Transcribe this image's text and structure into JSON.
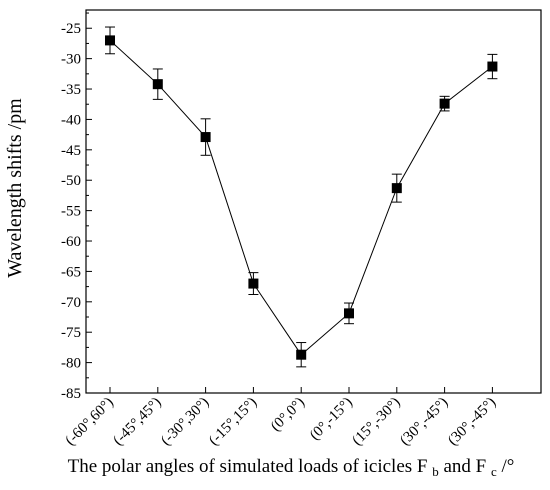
{
  "chart_data": {
    "type": "line",
    "categories": [
      "(-60°,60°)",
      "(-45°,45°)",
      "(-30°,30°)",
      "(-15°,15°)",
      "(0°,0°)",
      "(0°,-15°)",
      "(15°,-30°)",
      "(30°,-45°)",
      "(30°,-45°)"
    ],
    "series": [
      {
        "name": "",
        "values": [
          -27.0,
          -34.2,
          -42.9,
          -67.0,
          -78.7,
          -71.9,
          -51.3,
          -37.4,
          -31.3
        ],
        "errors": [
          2.2,
          2.5,
          3.0,
          1.8,
          2.0,
          1.7,
          2.3,
          1.2,
          2.0
        ]
      }
    ],
    "title": "",
    "xlabel": "The polar angles of simulated loads of icicles F",
    "xlabel_sub_b": "b",
    "xlabel_and": " and F",
    "xlabel_sub_c": "c",
    "xlabel_unit": "/°",
    "ylabel": "Wavelength shifts /pm",
    "ylim": [
      -85,
      -22
    ],
    "yticks": [
      -85,
      -80,
      -75,
      -70,
      -65,
      -60,
      -55,
      -50,
      -45,
      -40,
      -35,
      -30,
      -25
    ],
    "yticklabels": [
      "-85",
      "-80",
      "-75",
      "-70",
      "-65",
      "-60",
      "-55",
      "-50",
      "-45",
      "-40",
      "-35",
      "-30",
      "-25"
    ],
    "grid": false,
    "legend": "none",
    "marker": "square",
    "line_color": "#000000"
  }
}
